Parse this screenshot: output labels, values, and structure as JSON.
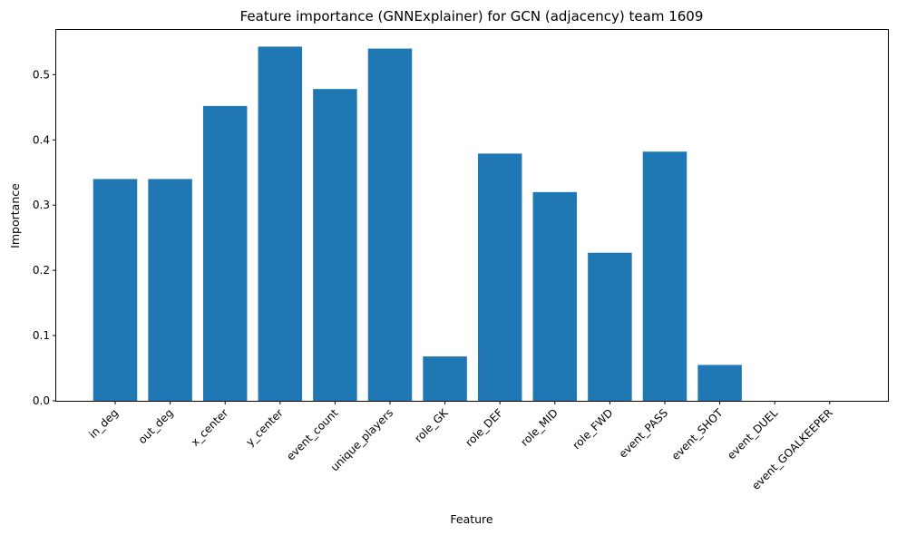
{
  "chart_data": {
    "type": "bar",
    "title": "Feature importance (GNNExplainer) for GCN (adjacency) team 1609",
    "xlabel": "Feature",
    "ylabel": "Importance",
    "ylim": [
      0,
      0.57
    ],
    "yticks": [
      0.0,
      0.1,
      0.2,
      0.3,
      0.4,
      0.5
    ],
    "ytick_labels": [
      "0.0",
      "0.1",
      "0.2",
      "0.3",
      "0.4",
      "0.5"
    ],
    "grid": false,
    "legend": "none",
    "bar_color": "#1f77b4",
    "categories": [
      "in_deg",
      "out_deg",
      "x_center",
      "y_center",
      "event_count",
      "unique_players",
      "role_GK",
      "role_DEF",
      "role_MID",
      "role_FWD",
      "event_PASS",
      "event_SHOT",
      "event_DUEL",
      "event_GOALKEEPER"
    ],
    "values": [
      0.34,
      0.34,
      0.452,
      0.543,
      0.478,
      0.54,
      0.068,
      0.379,
      0.32,
      0.227,
      0.382,
      0.055,
      0.0,
      0.0
    ]
  }
}
